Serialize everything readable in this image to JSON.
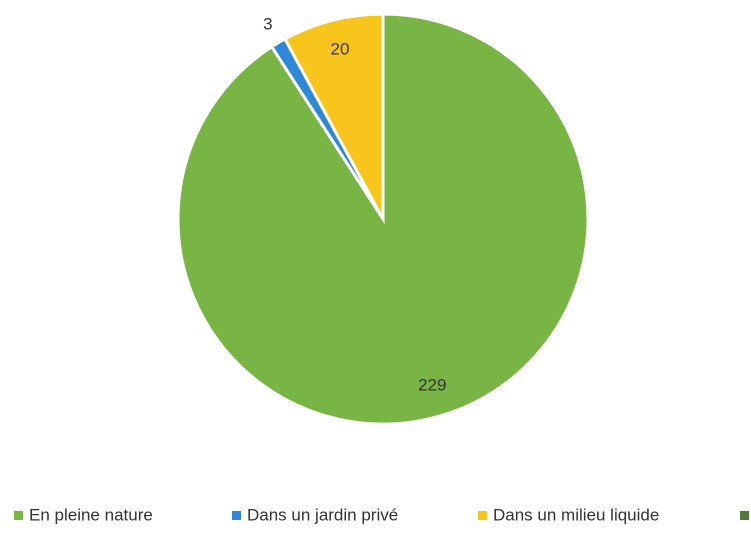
{
  "chart_data": {
    "type": "pie",
    "categories": [
      "En pleine nature",
      "Dans un jardin privé",
      "Dans un milieu liquide"
    ],
    "values": [
      229,
      3,
      20
    ],
    "colors": [
      "#78b544",
      "#2e88d6",
      "#f7c51b"
    ]
  }
}
